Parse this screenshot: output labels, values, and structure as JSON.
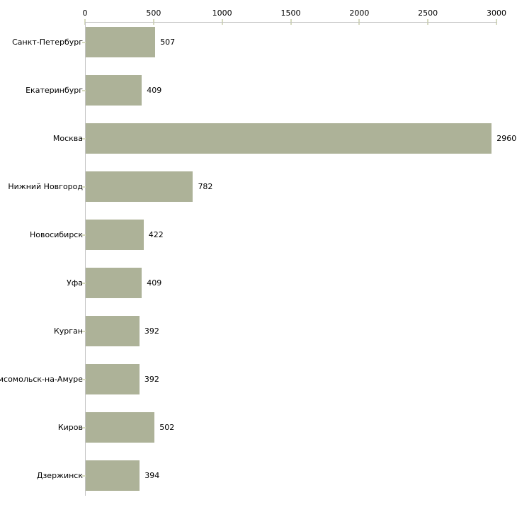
{
  "chart_data": {
    "type": "bar",
    "orientation": "horizontal",
    "title": "",
    "xlabel": "",
    "ylabel": "",
    "categories": [
      "Санкт-Петербург",
      "Екатеринбург",
      "Москва",
      "Нижний Новгород",
      "Новосибирск",
      "Уфа",
      "Курган",
      "мсомольск-на-Амуре",
      "Киров",
      "Дзержинск"
    ],
    "values": [
      507,
      409,
      2960,
      782,
      422,
      409,
      392,
      392,
      502,
      394
    ],
    "value_labels": [
      "507",
      "409",
      "2960",
      "782",
      "422",
      "409",
      "392",
      "392",
      "502",
      "394"
    ],
    "x_ticks": [
      0,
      500,
      1000,
      1500,
      2000,
      2500,
      3000
    ],
    "xlim": [
      0,
      3000
    ],
    "axis_position": "top",
    "grid": false,
    "legend": null,
    "colors": {
      "bar_fill": "#adb298",
      "axis_line": "#c3c3c3",
      "tick_mark": "#d6dabe",
      "text": "#000000",
      "background": "#ffffff"
    }
  }
}
